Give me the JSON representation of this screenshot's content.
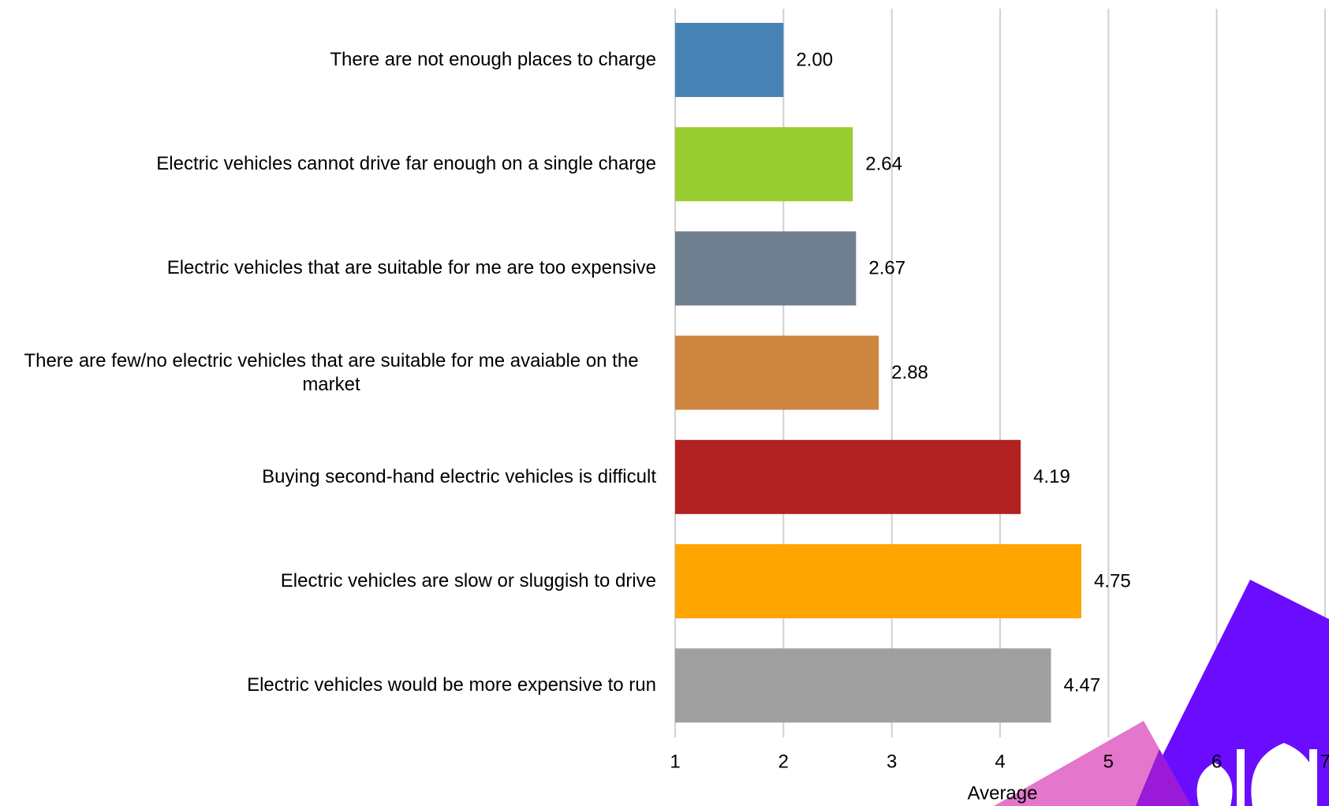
{
  "chart_data": {
    "type": "bar",
    "orientation": "horizontal",
    "categories": [
      "There are not enough places to charge",
      "Electric vehicles cannot drive far enough on a single charge",
      "Electric vehicles that are suitable for me are too expensive",
      "There are few/no electric vehicles that are suitable for me avaiable on the market",
      "Buying second-hand electric vehicles is difficult",
      "Electric vehicles are slow or sluggish to drive",
      "Electric vehicles would be more expensive to run"
    ],
    "values": [
      2.0,
      2.64,
      2.67,
      2.88,
      4.19,
      4.75,
      4.47
    ],
    "value_labels": [
      "2.00",
      "2.64",
      "2.67",
      "2.88",
      "4.19",
      "4.75",
      "4.47"
    ],
    "colors": [
      "#4682b4",
      "#9acd32",
      "#708090",
      "#cd853f",
      "#b22222",
      "#ffa500",
      "#a0a0a0"
    ],
    "x_label": "Average",
    "xlim": [
      1,
      7
    ],
    "xticks": [
      1,
      2,
      3,
      4,
      5,
      6,
      7
    ],
    "grid": true
  }
}
